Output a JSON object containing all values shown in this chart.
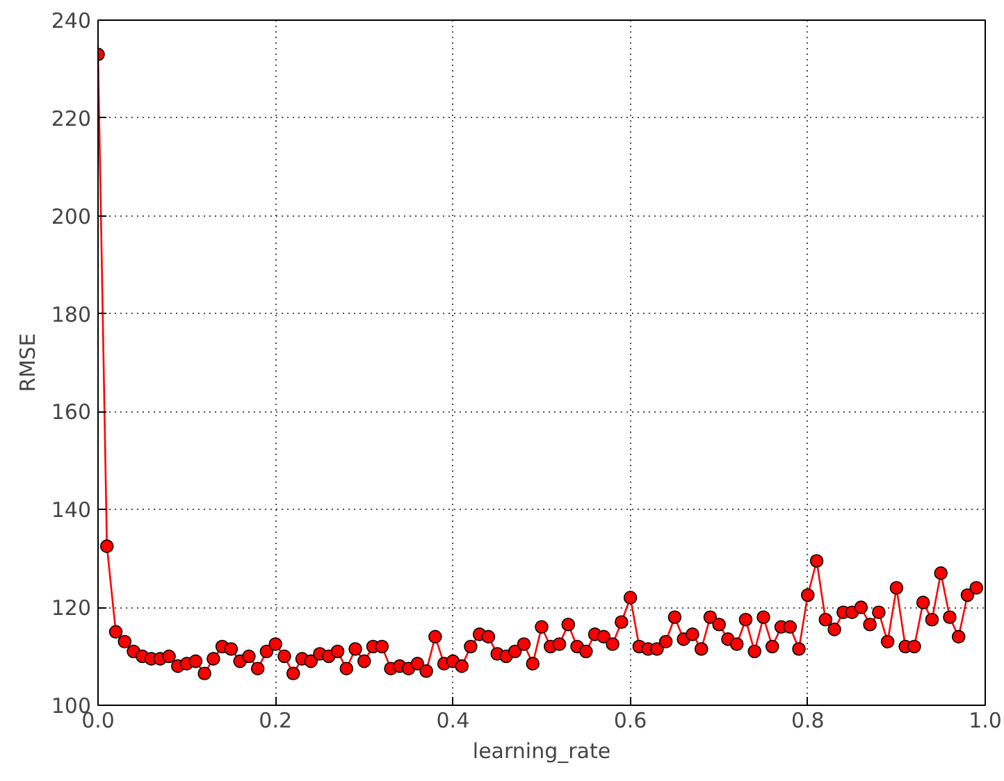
{
  "chart_data": {
    "type": "line",
    "xlabel": "learning_rate",
    "ylabel": "RMSE",
    "x": [
      0,
      0.01,
      0.02,
      0.03,
      0.04,
      0.05,
      0.06,
      0.07,
      0.08,
      0.09,
      0.1,
      0.11,
      0.12,
      0.13,
      0.14,
      0.15,
      0.16,
      0.17,
      0.18,
      0.19,
      0.2,
      0.21,
      0.22,
      0.23,
      0.24,
      0.25,
      0.26,
      0.27,
      0.28,
      0.29,
      0.3,
      0.31,
      0.32,
      0.33,
      0.34,
      0.35,
      0.36,
      0.37,
      0.38,
      0.39,
      0.4,
      0.41,
      0.42,
      0.43,
      0.44,
      0.45,
      0.46,
      0.47,
      0.48,
      0.49,
      0.5,
      0.51,
      0.52,
      0.53,
      0.54,
      0.55,
      0.56,
      0.57,
      0.58,
      0.59,
      0.6,
      0.61,
      0.62,
      0.63,
      0.64,
      0.65,
      0.66,
      0.67,
      0.68,
      0.69,
      0.7,
      0.71,
      0.72,
      0.73,
      0.74,
      0.75,
      0.76,
      0.77,
      0.78,
      0.79,
      0.8,
      0.81,
      0.82,
      0.83,
      0.84,
      0.85,
      0.86,
      0.87,
      0.88,
      0.89,
      0.9,
      0.91,
      0.92,
      0.93,
      0.94,
      0.95,
      0.96,
      0.97,
      0.98,
      0.99
    ],
    "series": [
      {
        "color": "#ff0000",
        "values": [
          233,
          132.5,
          115,
          113,
          111,
          110,
          109.5,
          109.5,
          110,
          108,
          108.5,
          109,
          106.5,
          109.5,
          112,
          111.5,
          109,
          110,
          107.5,
          111,
          112.5,
          110,
          106.5,
          109.5,
          109,
          110.5,
          110,
          111,
          107.5,
          111.5,
          109,
          112,
          112,
          107.5,
          108,
          107.5,
          108.5,
          107,
          114,
          108.5,
          109,
          108,
          112,
          114.5,
          114,
          110.5,
          110,
          111,
          112.5,
          108.5,
          116,
          112,
          112.5,
          116.5,
          112,
          111,
          114.5,
          114,
          112.5,
          117,
          122,
          112,
          111.5,
          111.5,
          113,
          118,
          113.5,
          114.5,
          111.5,
          118,
          116.5,
          113.5,
          112.5,
          117.5,
          111,
          118,
          112,
          116,
          116,
          111.5,
          122.5,
          129.5,
          117.5,
          115.5,
          119,
          119,
          120,
          116.5,
          119,
          113,
          124,
          112,
          112,
          121,
          117.5,
          127,
          118,
          114,
          122.5,
          124
        ]
      }
    ],
    "xlim": [
      0,
      1
    ],
    "ylim": [
      100,
      240
    ],
    "xticks": [
      {
        "value": 0,
        "label": "0.0"
      },
      0.2,
      0.4,
      0.6,
      0.8,
      {
        "value": 1,
        "label": "1.0"
      }
    ],
    "yticks": [
      100,
      120,
      140,
      160,
      180,
      200,
      220,
      240
    ],
    "grid": true,
    "marker": "circle",
    "line_style": "solid"
  }
}
